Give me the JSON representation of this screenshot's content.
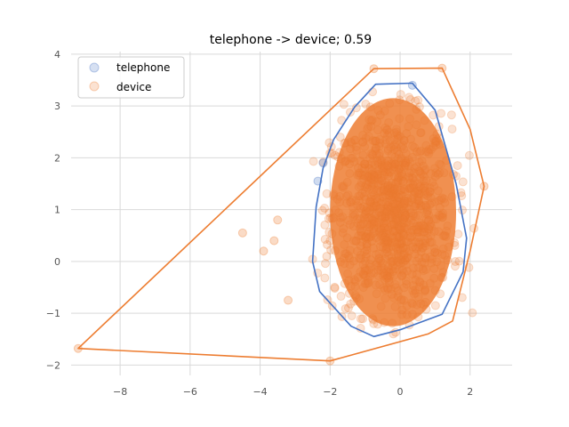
{
  "chart_data": {
    "type": "scatter",
    "title": "telephone -> device; 0.59",
    "xlabel": "",
    "ylabel": "",
    "xlim": [
      -9.4,
      3.2
    ],
    "ylim": [
      -2.2,
      4.05
    ],
    "xticks": [
      -8,
      -6,
      -4,
      -2,
      0,
      2
    ],
    "yticks": [
      -2,
      -1,
      0,
      1,
      2,
      3,
      4
    ],
    "xtick_labels": [
      "−8",
      "−6",
      "−4",
      "−2",
      "0",
      "2"
    ],
    "ytick_labels": [
      "−2",
      "−1",
      "0",
      "1",
      "2",
      "3",
      "4"
    ],
    "grid": true,
    "legend_position": "top-left",
    "series": [
      {
        "name": "telephone",
        "color": "#4472c4",
        "hull": [
          [
            -0.7,
            3.42
          ],
          [
            0.35,
            3.44
          ],
          [
            1.0,
            2.92
          ],
          [
            1.6,
            1.5
          ],
          [
            1.9,
            0.45
          ],
          [
            1.8,
            -0.2
          ],
          [
            1.2,
            -1.02
          ],
          [
            0.0,
            -1.32
          ],
          [
            -0.75,
            -1.45
          ],
          [
            -1.4,
            -1.25
          ],
          [
            -2.3,
            -0.58
          ],
          [
            -2.5,
            0.0
          ],
          [
            -2.4,
            1.05
          ],
          [
            -2.2,
            1.8
          ],
          [
            -1.9,
            2.35
          ],
          [
            -1.3,
            2.98
          ]
        ]
      },
      {
        "name": "device",
        "color": "#ed7d31",
        "hull": [
          [
            -0.75,
            3.72
          ],
          [
            1.2,
            3.73
          ],
          [
            2.0,
            2.55
          ],
          [
            2.4,
            1.45
          ],
          [
            2.0,
            0.2
          ],
          [
            1.5,
            -1.15
          ],
          [
            0.8,
            -1.4
          ],
          [
            -2.0,
            -1.92
          ],
          [
            -9.2,
            -1.68
          ]
        ]
      }
    ]
  }
}
